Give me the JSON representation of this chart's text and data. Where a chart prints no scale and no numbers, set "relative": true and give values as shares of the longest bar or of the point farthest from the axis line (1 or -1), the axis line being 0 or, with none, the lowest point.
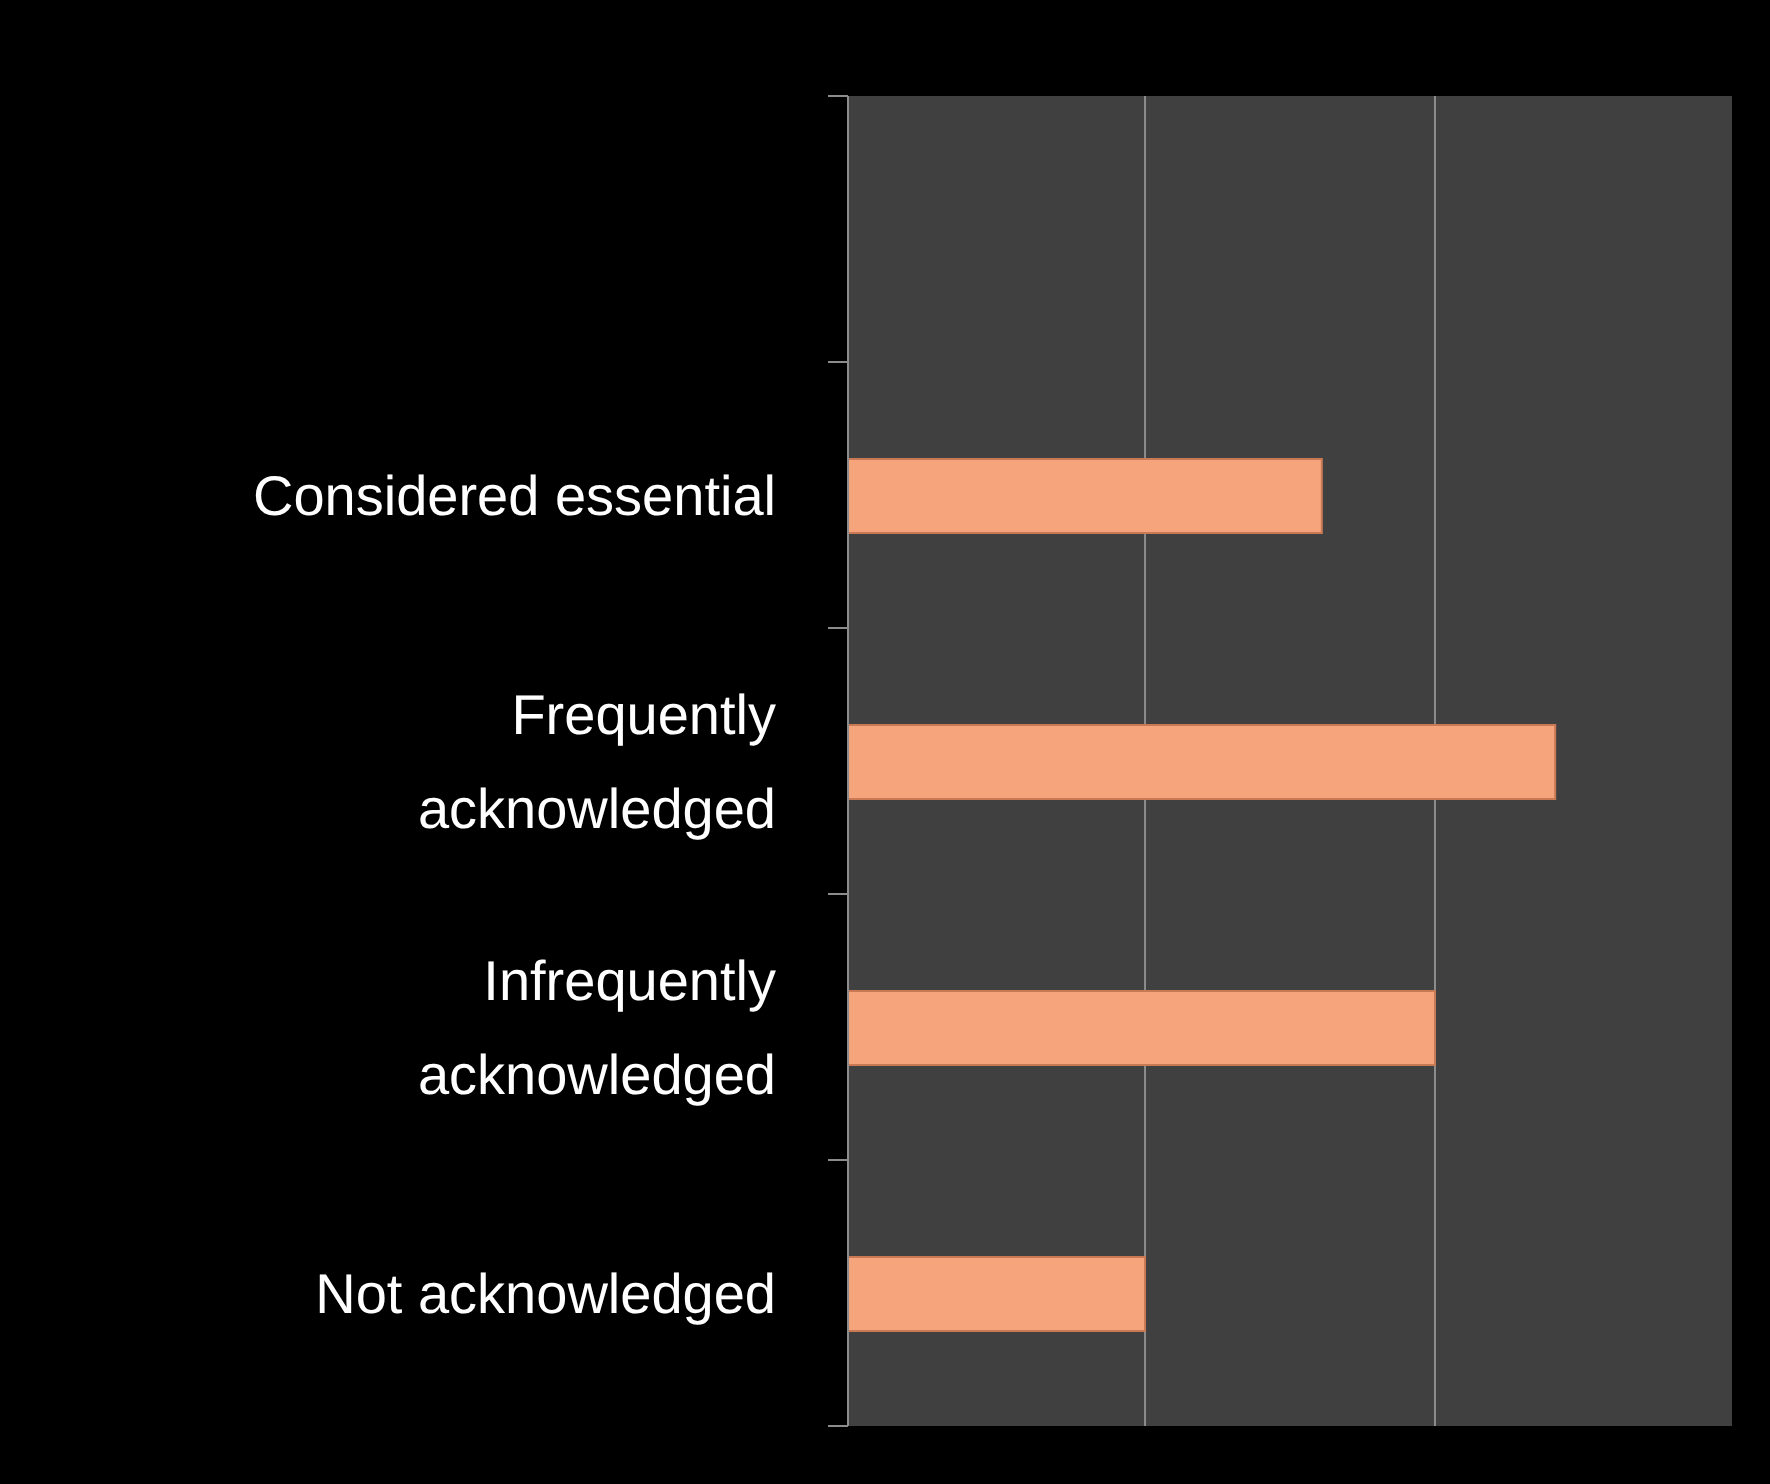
{
  "chart_data": {
    "type": "bar",
    "orientation": "horizontal",
    "relative": true,
    "categories": [
      null,
      "Considered essential",
      "Frequently acknowledged",
      "Infrequently acknowledged",
      "Not acknowledged"
    ],
    "values": [
      null,
      0.67,
      1,
      0.83,
      0.42
    ],
    "color": "#f6a47c",
    "ref_lines": [
      {
        "axis": "x",
        "value": 0.42,
        "color": "#8c8c8c"
      },
      {
        "axis": "x",
        "value": 0.83,
        "color": "#8c8c8c"
      }
    ]
  }
}
